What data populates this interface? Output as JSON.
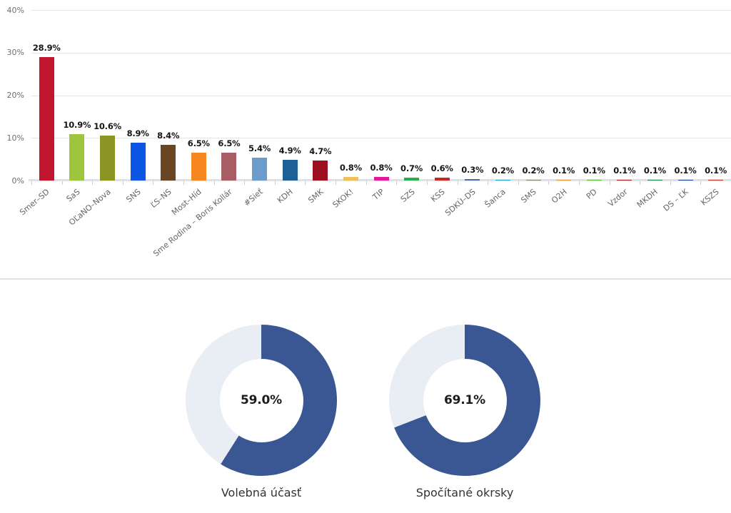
{
  "figure": {
    "background": "#FFFFFF"
  },
  "chart_data": [
    {
      "type": "bar",
      "title": "",
      "xlabel": "",
      "ylabel": "",
      "ylim": [
        0,
        40
      ],
      "grid": true,
      "yticks": [
        {
          "value": 0,
          "label": "0%"
        },
        {
          "value": 10,
          "label": "10%"
        },
        {
          "value": 20,
          "label": "20%"
        },
        {
          "value": 30,
          "label": "30%"
        },
        {
          "value": 40,
          "label": "40%"
        }
      ],
      "categories": [
        "Smer–SD",
        "SaS",
        "OĽaNO–Nova",
        "SNS",
        "ĽS–NS",
        "Most–Híd",
        "Sme Rodina – Boris Kollár",
        "#Sieť",
        "KDH",
        "SMK",
        "SKOK!",
        "TIP",
        "SZS",
        "KSS",
        "SDKÚ–DS",
        "Šanca",
        "SMS",
        "O2H",
        "PD",
        "Vzdor",
        "MKDH",
        "DS – ĽK",
        "KSZS"
      ],
      "values": [
        28.9,
        10.9,
        10.6,
        8.9,
        8.4,
        6.5,
        6.5,
        5.4,
        4.9,
        4.7,
        0.8,
        0.8,
        0.7,
        0.6,
        0.3,
        0.2,
        0.2,
        0.1,
        0.1,
        0.1,
        0.1,
        0.1,
        0.1
      ],
      "value_labels": [
        "28.9%",
        "10.9%",
        "10.6%",
        "8.9%",
        "8.4%",
        "6.5%",
        "6.5%",
        "5.4%",
        "4.9%",
        "4.7%",
        "0.8%",
        "0.8%",
        "0.7%",
        "0.6%",
        "0.3%",
        "0.2%",
        "0.2%",
        "0.1%",
        "0.1%",
        "0.1%",
        "0.1%",
        "0.1%",
        "0.1%"
      ],
      "bar_colors": [
        "#C2152F",
        "#9FC53C",
        "#8C9423",
        "#0D55E3",
        "#6A4522",
        "#F6861F",
        "#A85D64",
        "#6B9CCB",
        "#1D6095",
        "#9C1020",
        "#EFC257",
        "#E5189B",
        "#2CAA4D",
        "#CE2424",
        "#4A72A8",
        "#29A5D8",
        "#8A8F66",
        "#E8A33D",
        "#5BC236",
        "#B22222",
        "#2E8B57",
        "#1E4F9C",
        "#C0392B"
      ]
    },
    {
      "type": "donut",
      "value": 59.0,
      "center_label": "59.0%",
      "caption": "Volebná účasť",
      "fill_color": "#3A5794",
      "track_color": "#E9EDF4"
    },
    {
      "type": "donut",
      "value": 69.1,
      "center_label": "69.1%",
      "caption": "Spočítané okrsky",
      "fill_color": "#3A5794",
      "track_color": "#E9EDF4"
    }
  ]
}
